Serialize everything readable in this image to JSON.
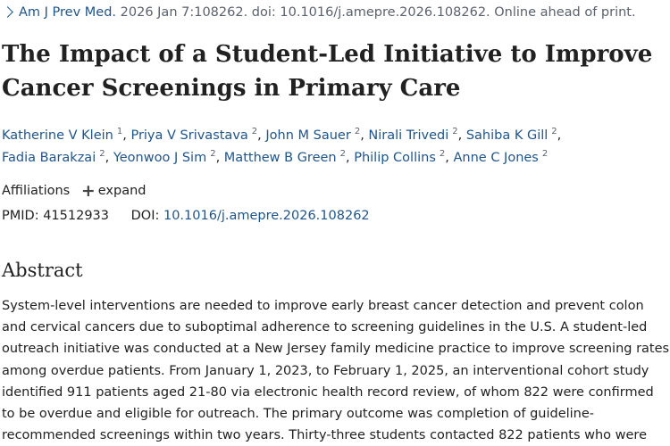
{
  "citation": {
    "journal": "Am J Prev Med.",
    "details": " 2026 Jan 7:108262. doi: 10.1016/j.amepre.2026.108262. Online ahead of print."
  },
  "title": {
    "line1": "The Impact of a Student-Led Initiative to Improve",
    "line2": "Cancer Screenings in Primary Care"
  },
  "authors": [
    {
      "name": "Katherine V Klein",
      "aff": "1"
    },
    {
      "name": "Priya V Srivastava",
      "aff": "2"
    },
    {
      "name": "John M Sauer",
      "aff": "2"
    },
    {
      "name": "Nirali Trivedi",
      "aff": "2"
    },
    {
      "name": "Sahiba K Gill",
      "aff": "2"
    },
    {
      "name": "Fadia Barakzai",
      "aff": "2"
    },
    {
      "name": "Yeonwoo J Sim",
      "aff": "2"
    },
    {
      "name": "Matthew B Green",
      "aff": "2"
    },
    {
      "name": "Philip Collins",
      "aff": "2"
    },
    {
      "name": "Anne C Jones",
      "aff": "2"
    }
  ],
  "affiliations": {
    "label": "Affiliations",
    "expand_label": "expand"
  },
  "identifiers": {
    "pmid_label": "PMID:",
    "pmid": "41512933",
    "doi_label": "DOI:",
    "doi": "10.1016/j.amepre.2026.108262"
  },
  "abstract": {
    "heading": "Abstract",
    "lines": [
      "System-level interventions are needed to improve early breast cancer detection and prevent colon",
      "and cervical cancers due to suboptimal adherence to screening guidelines in the U.S. A student-led",
      "outreach initiative was conducted at a New Jersey family medicine practice to improve screening rates",
      "among overdue patients. From January 1, 2023, to February 1, 2025, an interventional cohort study",
      "identified 911 patients aged 21-80 via electronic health record review, of whom 822 were confirmed",
      "to be overdue and eligible for outreach. The primary outcome was completion of guideline-",
      "recommended screenings within two years. Thirty-three students contacted 822 patients who were"
    ]
  }
}
